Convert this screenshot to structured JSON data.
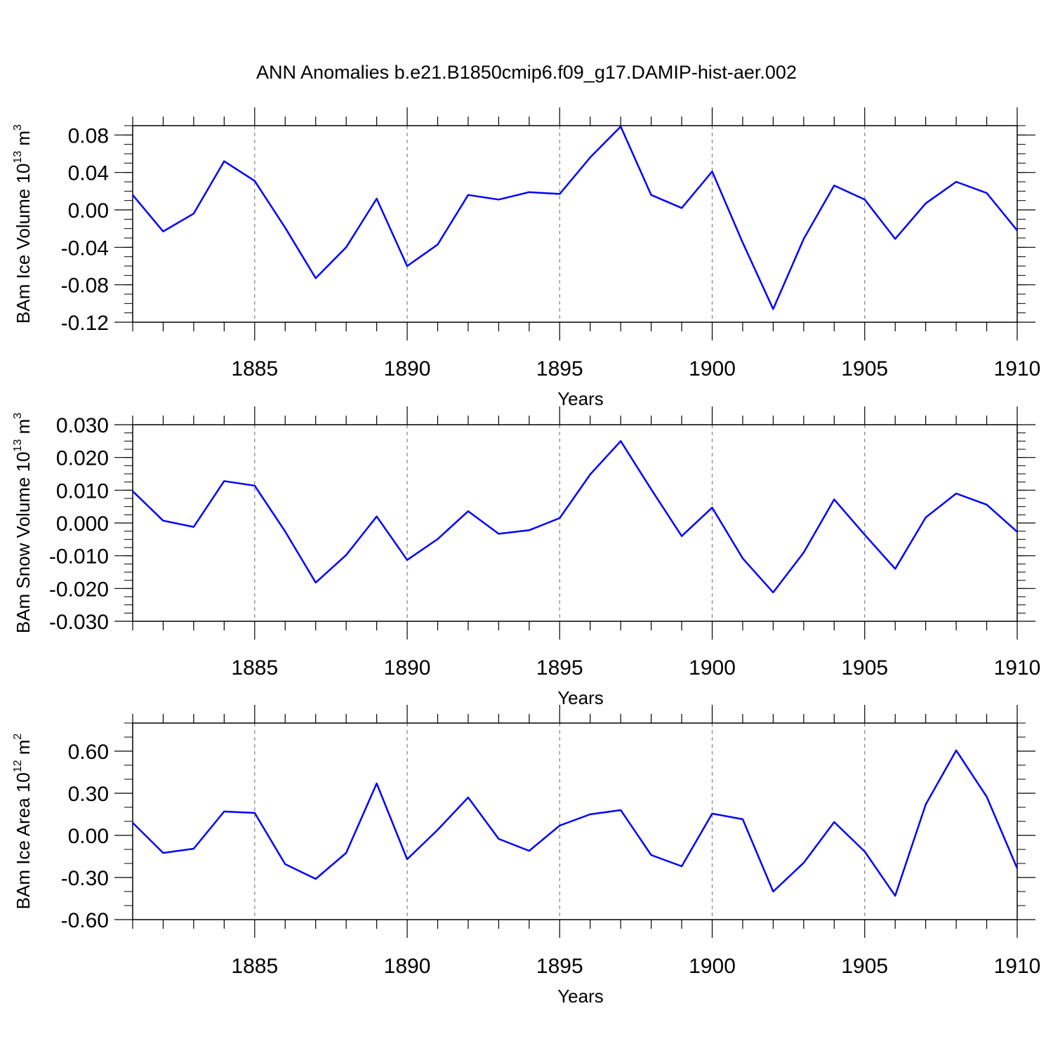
{
  "title": "ANN Anomalies b.e21.B1850cmip6.f09_g17.DAMIP-hist-aer.002",
  "colors": {
    "series": "#0000ff",
    "axis": "#000000",
    "grid": "#808080"
  },
  "chart_data": [
    {
      "type": "line",
      "ylabel_base": "BAm Ice Volume 10",
      "ylabel_exp": "13",
      "ylabel_unit": " m",
      "ylabel_unit_exp": "3",
      "xlabel": "Years",
      "xlim": [
        1881,
        1910
      ],
      "ylim": [
        -0.12,
        0.09
      ],
      "xticks": [
        1885,
        1890,
        1895,
        1900,
        1905,
        1910
      ],
      "yticks": [
        -0.12,
        -0.08,
        -0.04,
        0.0,
        0.04,
        0.08
      ],
      "ytick_labels": [
        "-0.12",
        "-0.08",
        "-0.04",
        "0.00",
        "0.04",
        "0.08"
      ],
      "y_minor_step": 0.01,
      "grid": "vertical dashed at major x ticks",
      "x": [
        1881,
        1882,
        1883,
        1884,
        1885,
        1886,
        1887,
        1888,
        1889,
        1890,
        1891,
        1892,
        1893,
        1894,
        1895,
        1896,
        1897,
        1898,
        1899,
        1900,
        1901,
        1902,
        1903,
        1904,
        1905,
        1906,
        1907,
        1908,
        1909,
        1910
      ],
      "y": [
        0.016,
        -0.023,
        -0.004,
        0.052,
        0.031,
        -0.019,
        -0.073,
        -0.04,
        0.012,
        -0.06,
        -0.037,
        0.016,
        0.011,
        0.019,
        0.017,
        0.056,
        0.089,
        0.016,
        0.002,
        0.041,
        -0.035,
        -0.106,
        -0.031,
        0.026,
        0.011,
        -0.031,
        0.007,
        0.03,
        0.018,
        -0.022
      ]
    },
    {
      "type": "line",
      "ylabel_base": "BAm Snow Volume 10",
      "ylabel_exp": "13",
      "ylabel_unit": " m",
      "ylabel_unit_exp": "3",
      "xlabel": "Years",
      "xlim": [
        1881,
        1910
      ],
      "ylim": [
        -0.03,
        0.03
      ],
      "xticks": [
        1885,
        1890,
        1895,
        1900,
        1905,
        1910
      ],
      "yticks": [
        -0.03,
        -0.02,
        -0.01,
        0.0,
        0.01,
        0.02,
        0.03
      ],
      "ytick_labels": [
        "-0.030",
        "-0.020",
        "-0.010",
        "0.000",
        "0.010",
        "0.020",
        "0.030"
      ],
      "y_minor_step": 0.0025,
      "grid": "vertical dashed at major x ticks",
      "x": [
        1881,
        1882,
        1883,
        1884,
        1885,
        1886,
        1887,
        1888,
        1889,
        1890,
        1891,
        1892,
        1893,
        1894,
        1895,
        1896,
        1897,
        1898,
        1899,
        1900,
        1901,
        1902,
        1903,
        1904,
        1905,
        1906,
        1907,
        1908,
        1909,
        1910
      ],
      "y": [
        0.0097,
        0.0007,
        -0.0012,
        0.0128,
        0.0114,
        -0.0026,
        -0.0182,
        -0.0098,
        0.002,
        -0.0113,
        -0.0049,
        0.0036,
        -0.0033,
        -0.0022,
        0.0015,
        0.0148,
        0.025,
        0.0103,
        -0.004,
        0.0047,
        -0.0108,
        -0.0212,
        -0.009,
        0.0072,
        -0.0036,
        -0.014,
        0.0017,
        0.009,
        0.0056,
        -0.0027
      ]
    },
    {
      "type": "line",
      "ylabel_base": "BAm Ice Area 10",
      "ylabel_exp": "12",
      "ylabel_unit": " m",
      "ylabel_unit_exp": "2",
      "xlabel": "Years",
      "xlim": [
        1881,
        1910
      ],
      "ylim": [
        -0.6,
        0.8
      ],
      "xticks": [
        1885,
        1890,
        1895,
        1900,
        1905,
        1910
      ],
      "yticks": [
        -0.6,
        -0.3,
        0.0,
        0.3,
        0.6
      ],
      "ytick_labels": [
        "-0.60",
        "-0.30",
        "0.00",
        "0.30",
        "0.60"
      ],
      "y_minor_step": 0.1,
      "grid": "vertical dashed at major x ticks",
      "x": [
        1881,
        1882,
        1883,
        1884,
        1885,
        1886,
        1887,
        1888,
        1889,
        1890,
        1891,
        1892,
        1893,
        1894,
        1895,
        1896,
        1897,
        1898,
        1899,
        1900,
        1901,
        1902,
        1903,
        1904,
        1905,
        1906,
        1907,
        1908,
        1909,
        1910
      ],
      "y": [
        0.09,
        -0.125,
        -0.095,
        0.17,
        0.16,
        -0.205,
        -0.31,
        -0.125,
        0.37,
        -0.17,
        0.04,
        0.27,
        -0.025,
        -0.11,
        0.07,
        0.15,
        0.18,
        -0.14,
        -0.22,
        0.155,
        0.115,
        -0.4,
        -0.195,
        0.095,
        -0.115,
        -0.43,
        0.22,
        0.605,
        0.275,
        -0.235
      ]
    }
  ]
}
